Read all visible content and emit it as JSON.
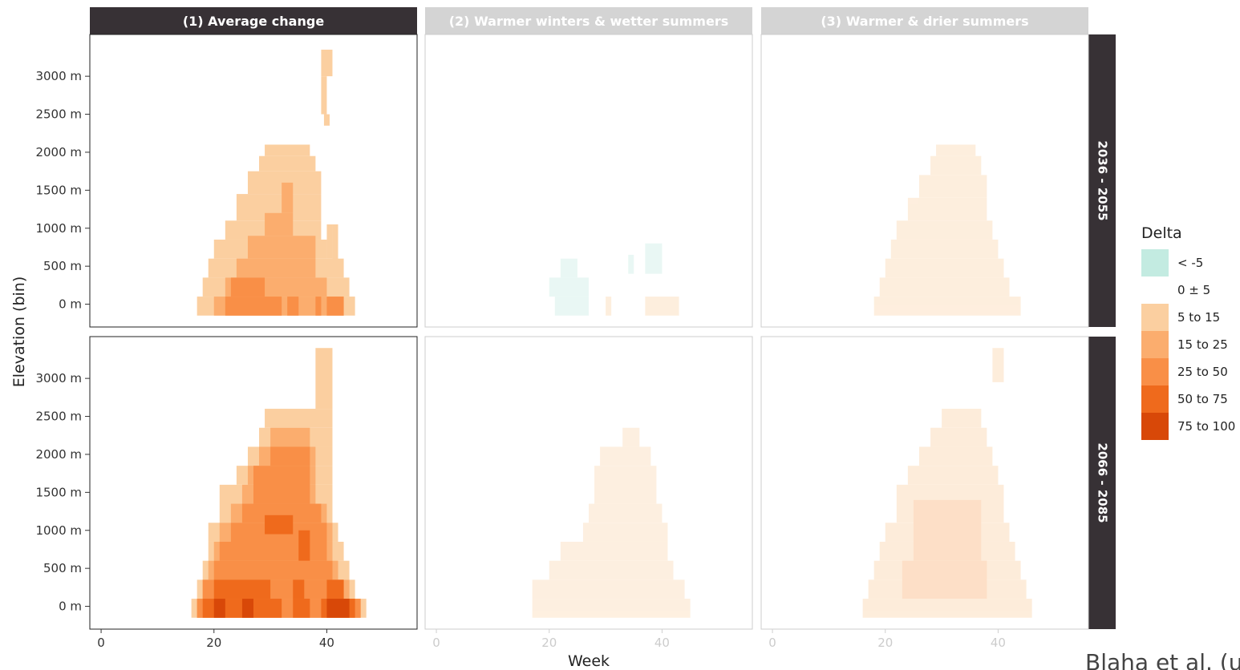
{
  "chart_data": {
    "type": "heatmap",
    "xlabel": "Week",
    "ylabel": "Elevation (bin)",
    "xlim": [
      -2,
      56
    ],
    "ylim": [
      -300,
      3550
    ],
    "x_ticks": [
      {
        "v": 0,
        "label": "0"
      },
      {
        "v": 20,
        "label": "20"
      },
      {
        "v": 40,
        "label": "40"
      }
    ],
    "y_ticks": [
      {
        "v": 0,
        "label": "0 m"
      },
      {
        "v": 500,
        "label": "500 m"
      },
      {
        "v": 1000,
        "label": "1000 m"
      },
      {
        "v": 1500,
        "label": "1500 m"
      },
      {
        "v": 2000,
        "label": "2000 m"
      },
      {
        "v": 2500,
        "label": "2500 m"
      },
      {
        "v": 3000,
        "label": "3000 m"
      }
    ],
    "cols": [
      "(1) Average change",
      "(2) Warmer winters & wetter summers",
      "(3) Warmer & drier summers"
    ],
    "active_col": 0,
    "rows": [
      "2036 - 2055",
      "2066 - 2085"
    ],
    "legend": {
      "title": "Delta",
      "classes": [
        {
          "label": "< -5",
          "color": "#c3ebe1"
        },
        {
          "label": "0 ± 5",
          "color": "#ffffff"
        },
        {
          "label": "5 to 15",
          "color": "#fbcfa0"
        },
        {
          "label": "15 to 25",
          "color": "#fbad6e"
        },
        {
          "label": "25 to 50",
          "color": "#f98f47"
        },
        {
          "label": "50 to 75",
          "color": "#ef6a1c"
        },
        {
          "label": "75 to 100",
          "color": "#d84808"
        }
      ]
    },
    "panels": [
      {
        "row": 0,
        "col": 0,
        "opacity": 1,
        "cells": [
          {
            "x0": 39,
            "x1": 41,
            "y0": 3000,
            "y1": 3350,
            "c": 2
          },
          {
            "x0": 39,
            "x1": 40,
            "y0": 2500,
            "y1": 3000,
            "c": 2
          },
          {
            "x0": 39.5,
            "x1": 40.5,
            "y0": 2350,
            "y1": 2500,
            "c": 2
          },
          {
            "x0": 29,
            "x1": 37,
            "y0": 1950,
            "y1": 2100,
            "c": 2
          },
          {
            "x0": 28,
            "x1": 38,
            "y0": 1750,
            "y1": 1950,
            "c": 2
          },
          {
            "x0": 26,
            "x1": 39,
            "y0": 1450,
            "y1": 1750,
            "c": 2
          },
          {
            "x0": 24,
            "x1": 39,
            "y0": 1100,
            "y1": 1450,
            "c": 2
          },
          {
            "x0": 22,
            "x1": 39,
            "y0": 850,
            "y1": 1100,
            "c": 2
          },
          {
            "x0": 20,
            "x1": 40,
            "y0": 600,
            "y1": 850,
            "c": 2
          },
          {
            "x0": 19,
            "x1": 43,
            "y0": 350,
            "y1": 600,
            "c": 2
          },
          {
            "x0": 18,
            "x1": 44,
            "y0": 100,
            "y1": 350,
            "c": 2
          },
          {
            "x0": 17,
            "x1": 45,
            "y0": -150,
            "y1": 100,
            "c": 2
          },
          {
            "x0": 40,
            "x1": 41,
            "y0": 600,
            "y1": 1050,
            "c": 2
          },
          {
            "x0": 41,
            "x1": 42,
            "y0": 400,
            "y1": 1050,
            "c": 2
          },
          {
            "x0": 32,
            "x1": 34,
            "y0": 1200,
            "y1": 1600,
            "c": 3
          },
          {
            "x0": 29,
            "x1": 34,
            "y0": 900,
            "y1": 1200,
            "c": 3
          },
          {
            "x0": 26,
            "x1": 38,
            "y0": 600,
            "y1": 900,
            "c": 3
          },
          {
            "x0": 24,
            "x1": 38,
            "y0": 350,
            "y1": 600,
            "c": 3
          },
          {
            "x0": 22,
            "x1": 40,
            "y0": 100,
            "y1": 350,
            "c": 3
          },
          {
            "x0": 20,
            "x1": 43,
            "y0": -150,
            "y1": 100,
            "c": 3
          },
          {
            "x0": 23,
            "x1": 29,
            "y0": 100,
            "y1": 350,
            "c": 4
          },
          {
            "x0": 22,
            "x1": 32,
            "y0": -150,
            "y1": 100,
            "c": 4
          },
          {
            "x0": 33,
            "x1": 35,
            "y0": -150,
            "y1": 100,
            "c": 4
          },
          {
            "x0": 38,
            "x1": 39,
            "y0": -150,
            "y1": 100,
            "c": 4
          },
          {
            "x0": 40,
            "x1": 43,
            "y0": -150,
            "y1": 100,
            "c": 4
          }
        ]
      },
      {
        "row": 0,
        "col": 1,
        "opacity": 0.35,
        "cells": [
          {
            "x0": 37,
            "x1": 40,
            "y0": 400,
            "y1": 800,
            "c": 0
          },
          {
            "x0": 34,
            "x1": 35,
            "y0": 400,
            "y1": 650,
            "c": 0
          },
          {
            "x0": 22,
            "x1": 25,
            "y0": 350,
            "y1": 600,
            "c": 0
          },
          {
            "x0": 20,
            "x1": 27,
            "y0": 100,
            "y1": 350,
            "c": 0
          },
          {
            "x0": 21,
            "x1": 27,
            "y0": -150,
            "y1": 100,
            "c": 0
          },
          {
            "x0": 30,
            "x1": 31,
            "y0": -150,
            "y1": 100,
            "c": 2
          },
          {
            "x0": 37,
            "x1": 43,
            "y0": -150,
            "y1": 100,
            "c": 2
          }
        ]
      },
      {
        "row": 0,
        "col": 2,
        "opacity": 0.35,
        "cells": [
          {
            "x0": 29,
            "x1": 36,
            "y0": 1950,
            "y1": 2100,
            "c": 2
          },
          {
            "x0": 28,
            "x1": 37,
            "y0": 1700,
            "y1": 1950,
            "c": 2
          },
          {
            "x0": 26,
            "x1": 38,
            "y0": 1400,
            "y1": 1700,
            "c": 2
          },
          {
            "x0": 24,
            "x1": 38,
            "y0": 1100,
            "y1": 1400,
            "c": 2
          },
          {
            "x0": 22,
            "x1": 39,
            "y0": 850,
            "y1": 1100,
            "c": 2
          },
          {
            "x0": 21,
            "x1": 40,
            "y0": 600,
            "y1": 850,
            "c": 2
          },
          {
            "x0": 20,
            "x1": 41,
            "y0": 350,
            "y1": 600,
            "c": 2
          },
          {
            "x0": 19,
            "x1": 42,
            "y0": 100,
            "y1": 350,
            "c": 2
          },
          {
            "x0": 18,
            "x1": 44,
            "y0": -150,
            "y1": 100,
            "c": 2
          }
        ]
      },
      {
        "row": 1,
        "col": 0,
        "opacity": 1,
        "cells": [
          {
            "x0": 38,
            "x1": 41,
            "y0": 2600,
            "y1": 3400,
            "c": 2
          },
          {
            "x0": 29,
            "x1": 41,
            "y0": 2350,
            "y1": 2600,
            "c": 2
          },
          {
            "x0": 28,
            "x1": 41,
            "y0": 2100,
            "y1": 2350,
            "c": 2
          },
          {
            "x0": 26,
            "x1": 41,
            "y0": 1850,
            "y1": 2100,
            "c": 2
          },
          {
            "x0": 24,
            "x1": 41,
            "y0": 1600,
            "y1": 1850,
            "c": 2
          },
          {
            "x0": 21,
            "x1": 41,
            "y0": 1100,
            "y1": 1600,
            "c": 2
          },
          {
            "x0": 19,
            "x1": 42,
            "y0": 850,
            "y1": 1100,
            "c": 2
          },
          {
            "x0": 19,
            "x1": 43,
            "y0": 600,
            "y1": 850,
            "c": 2
          },
          {
            "x0": 18,
            "x1": 44,
            "y0": 350,
            "y1": 600,
            "c": 2
          },
          {
            "x0": 17,
            "x1": 45,
            "y0": 100,
            "y1": 350,
            "c": 2
          },
          {
            "x0": 16,
            "x1": 47,
            "y0": -150,
            "y1": 100,
            "c": 2
          },
          {
            "x0": 30,
            "x1": 37,
            "y0": 2100,
            "y1": 2350,
            "c": 3
          },
          {
            "x0": 28,
            "x1": 38,
            "y0": 1850,
            "y1": 2100,
            "c": 3
          },
          {
            "x0": 26,
            "x1": 38,
            "y0": 1600,
            "y1": 1850,
            "c": 3
          },
          {
            "x0": 25,
            "x1": 38,
            "y0": 1350,
            "y1": 1600,
            "c": 3
          },
          {
            "x0": 23,
            "x1": 40,
            "y0": 1100,
            "y1": 1350,
            "c": 3
          },
          {
            "x0": 21,
            "x1": 41,
            "y0": 850,
            "y1": 1100,
            "c": 3
          },
          {
            "x0": 20,
            "x1": 41,
            "y0": 600,
            "y1": 850,
            "c": 3
          },
          {
            "x0": 19,
            "x1": 42,
            "y0": 350,
            "y1": 600,
            "c": 3
          },
          {
            "x0": 18,
            "x1": 44,
            "y0": 100,
            "y1": 350,
            "c": 3
          },
          {
            "x0": 17,
            "x1": 46,
            "y0": -150,
            "y1": 100,
            "c": 3
          },
          {
            "x0": 30,
            "x1": 37,
            "y0": 1850,
            "y1": 2100,
            "c": 4
          },
          {
            "x0": 27,
            "x1": 37,
            "y0": 1350,
            "y1": 1850,
            "c": 4
          },
          {
            "x0": 25,
            "x1": 39,
            "y0": 1100,
            "y1": 1350,
            "c": 4
          },
          {
            "x0": 23,
            "x1": 40,
            "y0": 850,
            "y1": 1100,
            "c": 4
          },
          {
            "x0": 21,
            "x1": 40,
            "y0": 600,
            "y1": 850,
            "c": 4
          },
          {
            "x0": 20,
            "x1": 41,
            "y0": 350,
            "y1": 600,
            "c": 4
          },
          {
            "x0": 18,
            "x1": 43,
            "y0": 100,
            "y1": 350,
            "c": 4
          },
          {
            "x0": 17,
            "x1": 46,
            "y0": -150,
            "y1": 100,
            "c": 4
          },
          {
            "x0": 29,
            "x1": 34,
            "y0": 950,
            "y1": 1200,
            "c": 5
          },
          {
            "x0": 35,
            "x1": 37,
            "y0": 600,
            "y1": 1000,
            "c": 5
          },
          {
            "x0": 20,
            "x1": 30,
            "y0": 100,
            "y1": 350,
            "c": 5
          },
          {
            "x0": 34,
            "x1": 36,
            "y0": 100,
            "y1": 350,
            "c": 5
          },
          {
            "x0": 40,
            "x1": 43,
            "y0": 100,
            "y1": 350,
            "c": 5
          },
          {
            "x0": 18,
            "x1": 32,
            "y0": -150,
            "y1": 100,
            "c": 5
          },
          {
            "x0": 34,
            "x1": 37,
            "y0": -150,
            "y1": 100,
            "c": 5
          },
          {
            "x0": 39,
            "x1": 45,
            "y0": -150,
            "y1": 100,
            "c": 5
          },
          {
            "x0": 20,
            "x1": 22,
            "y0": -150,
            "y1": 100,
            "c": 6
          },
          {
            "x0": 25,
            "x1": 27,
            "y0": -150,
            "y1": 100,
            "c": 6
          },
          {
            "x0": 40,
            "x1": 44,
            "y0": -150,
            "y1": 100,
            "c": 6
          }
        ]
      },
      {
        "row": 1,
        "col": 1,
        "opacity": 0.32,
        "cells": [
          {
            "x0": 33,
            "x1": 36,
            "y0": 2100,
            "y1": 2350,
            "c": 2
          },
          {
            "x0": 29,
            "x1": 38,
            "y0": 1850,
            "y1": 2100,
            "c": 2
          },
          {
            "x0": 28,
            "x1": 39,
            "y0": 1350,
            "y1": 1850,
            "c": 2
          },
          {
            "x0": 27,
            "x1": 40,
            "y0": 1100,
            "y1": 1350,
            "c": 2
          },
          {
            "x0": 26,
            "x1": 41,
            "y0": 850,
            "y1": 1100,
            "c": 2
          },
          {
            "x0": 22,
            "x1": 41,
            "y0": 600,
            "y1": 850,
            "c": 2
          },
          {
            "x0": 20,
            "x1": 42,
            "y0": 350,
            "y1": 600,
            "c": 2
          },
          {
            "x0": 17,
            "x1": 44,
            "y0": 100,
            "y1": 350,
            "c": 2
          },
          {
            "x0": 17,
            "x1": 45,
            "y0": -150,
            "y1": 100,
            "c": 2
          }
        ]
      },
      {
        "row": 1,
        "col": 2,
        "opacity": 0.38,
        "cells": [
          {
            "x0": 39,
            "x1": 41,
            "y0": 2950,
            "y1": 3400,
            "c": 2
          },
          {
            "x0": 30,
            "x1": 37,
            "y0": 2350,
            "y1": 2600,
            "c": 2
          },
          {
            "x0": 28,
            "x1": 38,
            "y0": 2100,
            "y1": 2350,
            "c": 2
          },
          {
            "x0": 26,
            "x1": 39,
            "y0": 1850,
            "y1": 2100,
            "c": 2
          },
          {
            "x0": 24,
            "x1": 40,
            "y0": 1600,
            "y1": 1850,
            "c": 2
          },
          {
            "x0": 22,
            "x1": 41,
            "y0": 1100,
            "y1": 1600,
            "c": 2
          },
          {
            "x0": 20,
            "x1": 42,
            "y0": 850,
            "y1": 1100,
            "c": 2
          },
          {
            "x0": 19,
            "x1": 43,
            "y0": 600,
            "y1": 850,
            "c": 2
          },
          {
            "x0": 18,
            "x1": 44,
            "y0": 350,
            "y1": 600,
            "c": 2
          },
          {
            "x0": 17,
            "x1": 45,
            "y0": 100,
            "y1": 350,
            "c": 2
          },
          {
            "x0": 16,
            "x1": 46,
            "y0": -150,
            "y1": 100,
            "c": 2
          },
          {
            "x0": 25,
            "x1": 37,
            "y0": 600,
            "y1": 1400,
            "c": 3
          },
          {
            "x0": 23,
            "x1": 38,
            "y0": 100,
            "y1": 600,
            "c": 3
          }
        ]
      }
    ],
    "attribution": "Blaha et al. (u"
  }
}
